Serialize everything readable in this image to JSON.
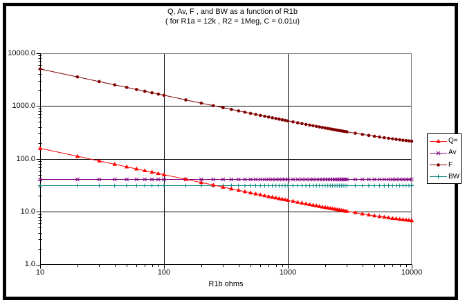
{
  "chart_data": {
    "type": "line",
    "title": "Q, Av, F , and BW as a function of R1b",
    "subtitle": "( for R1a = 12k , R2 = 1Meg, C = 0.01u)",
    "xlabel": "R1b ohms",
    "ylabel": "",
    "x_scale": "log",
    "y_scale": "log",
    "xlim": [
      10,
      10000
    ],
    "ylim": [
      1,
      10000
    ],
    "grid": "major-black-gridlines",
    "legend_position": "right",
    "x_tick_labels": [
      "10",
      "100",
      "1000",
      "10000"
    ],
    "y_tick_labels": [
      "10000.0",
      "1000.0",
      "100.0",
      "10.0",
      "1.0"
    ],
    "x": [
      10,
      20,
      30,
      40,
      50,
      60,
      70,
      80,
      90,
      100,
      150,
      200,
      250,
      300,
      350,
      400,
      450,
      500,
      550,
      600,
      650,
      700,
      750,
      800,
      850,
      900,
      950,
      1000,
      1100,
      1200,
      1300,
      1400,
      1500,
      1600,
      1700,
      1800,
      1900,
      2000,
      2100,
      2200,
      2300,
      2400,
      2500,
      2600,
      2700,
      2800,
      2900,
      3000,
      3500,
      4000,
      4500,
      5000,
      5500,
      6000,
      6500,
      7000,
      7500,
      8000,
      8500,
      9000,
      9500,
      10000
    ],
    "series": [
      {
        "name": "Q=",
        "color": "#FF0000",
        "marker": "triangle",
        "values": [
          158.2,
          111.9,
          91.4,
          79.2,
          70.9,
          64.7,
          59.9,
          56.1,
          52.9,
          50.2,
          41.1,
          35.6,
          32.0,
          29.2,
          27.1,
          25.4,
          24.0,
          22.8,
          21.8,
          20.9,
          20.1,
          19.4,
          18.8,
          18.3,
          17.7,
          17.3,
          16.9,
          16.5,
          15.8,
          15.1,
          14.6,
          14.1,
          13.7,
          13.3,
          13.0,
          12.6,
          12.3,
          12.1,
          11.8,
          11.6,
          11.4,
          11.2,
          11.0,
          10.8,
          10.6,
          10.5,
          10.3,
          10.2,
          9.6,
          9.1,
          8.7,
          8.4,
          8.1,
          7.9,
          7.7,
          7.5,
          7.4,
          7.2,
          7.1,
          7.0,
          6.9,
          6.8
        ]
      },
      {
        "name": "Av",
        "color": "#800080",
        "marker": "x",
        "constant": 41.7
      },
      {
        "name": "F",
        "color": "#800000",
        "marker": "dot",
        "values": [
          5035.1,
          3561.9,
          2909.5,
          2520.8,
          2255.5,
          2059.9,
          1907.9,
          1785.3,
          1683.9,
          1598.1,
          1307.6,
          1134.7,
          1017.0,
          930.3,
          863.0,
          808.9,
          764.2,
          726.5,
          694.0,
          665.8,
          640.9,
          618.8,
          599.0,
          581.2,
          564.9,
          550.1,
          536.4,
          523.8,
          501.4,
          481.9,
          464.7,
          449.5,
          435.9,
          423.6,
          412.5,
          402.3,
          393.0,
          384.4,
          376.5,
          369.1,
          362.3,
          355.9,
          349.9,
          344.3,
          339.0,
          334.0,
          329.3,
          324.9,
          305.7,
          290.6,
          278.2,
          267.9,
          259.2,
          251.6,
          245.1,
          239.4,
          234.3,
          229.7,
          225.6,
          221.9,
          218.6,
          215.5
        ]
      },
      {
        "name": "BW",
        "color": "#008080",
        "marker": "plus",
        "constant": 31.8
      }
    ]
  }
}
